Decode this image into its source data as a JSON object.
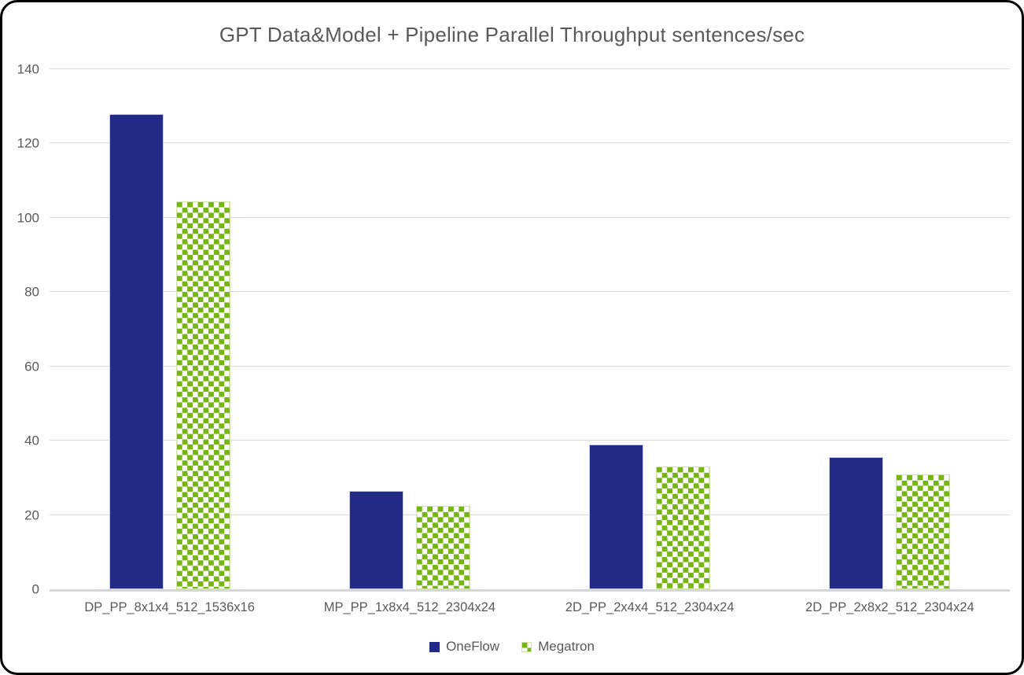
{
  "frame": {
    "background": "#ffffff",
    "border_color": "#000000"
  },
  "colors": {
    "oneflow_blue": "#232a85",
    "megatron_green": "#76b513",
    "gridline": "#d9d9d9",
    "axis_line": "#d6d6d6",
    "text_gray": "#595959"
  },
  "chart_data": {
    "type": "bar",
    "title": "GPT Data&Model + Pipeline Parallel Throughput sentences/sec",
    "categories": [
      "DP_PP_8x1x4_512_1536x16",
      "MP_PP_1x8x4_512_2304x24",
      "2D_PP_2x4x4_512_2304x24",
      "2D_PP_2x8x2_512_2304x24"
    ],
    "series": [
      {
        "name": "OneFlow",
        "color": "#232a85",
        "pattern": "solid",
        "values": [
          128,
          26.5,
          39,
          35.5
        ]
      },
      {
        "name": "Megatron",
        "color": "#76b513",
        "pattern": "checker",
        "values": [
          104.5,
          22.5,
          33,
          31
        ]
      }
    ],
    "xlabel": "",
    "ylabel": "",
    "ylim": [
      0,
      140
    ],
    "yticks": [
      0,
      20,
      40,
      60,
      80,
      100,
      120,
      140
    ],
    "grid": true,
    "legend_position": "bottom"
  }
}
